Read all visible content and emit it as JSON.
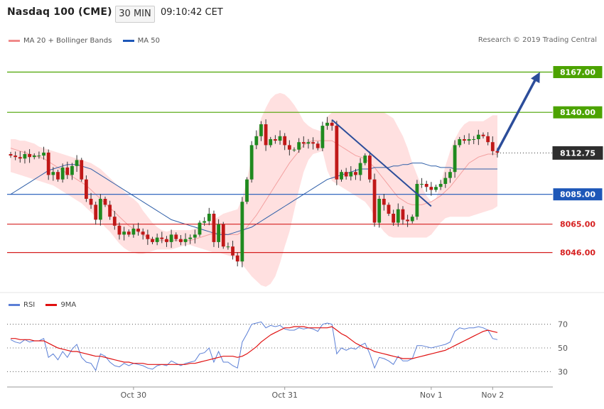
{
  "header": {
    "title": "Nasdaq 100 (CME)",
    "timeframe": "30 MIN",
    "time": "09:10:42 CET"
  },
  "legend": {
    "bb_label": "MA 20 + Bollinger Bands",
    "ma50_label": "MA 50",
    "credit": "Research © 2019 Trading Central"
  },
  "colors": {
    "green": "#4ca300",
    "blue": "#1d57b8",
    "red": "#d62020",
    "band": "#ffd6d6",
    "bull": "#1f8a1f",
    "bear": "#c01818",
    "arrow": "#2c4d9a"
  },
  "chart_data": [
    {
      "type": "candlestick",
      "ylim": [
        8022,
        8182
      ],
      "levels": [
        {
          "value": 8167.0,
          "label": "8167.00",
          "color": "#4ca300"
        },
        {
          "value": 8140.0,
          "label": "8140.00",
          "color": "#4ca300"
        },
        {
          "value": 8112.75,
          "label": "8112.75",
          "color": "#333333",
          "kind": "price"
        },
        {
          "value": 8085.0,
          "label": "8085.00",
          "color": "#1d57b8"
        },
        {
          "value": 8065.0,
          "label": "8065.00",
          "color": "#d62020"
        },
        {
          "value": 8046.0,
          "label": "8046.00",
          "color": "#d62020"
        }
      ],
      "x_tick_labels": [
        {
          "label": "Oct 30",
          "index": 26
        },
        {
          "label": "Oct 31",
          "index": 58
        },
        {
          "label": "Nov 1",
          "index": 89
        },
        {
          "label": "Nov 2",
          "index": 102
        }
      ],
      "series": [
        {
          "name": "MA 20 + Bollinger Bands"
        },
        {
          "name": "MA 50"
        }
      ],
      "closes": [
        8111,
        8110,
        8109,
        8112,
        8110,
        8111,
        8111,
        8113,
        8098,
        8100,
        8095,
        8103,
        8098,
        8104,
        8108,
        8095,
        8082,
        8078,
        8068,
        8082,
        8078,
        8070,
        8064,
        8058,
        8060,
        8058,
        8062,
        8060,
        8058,
        8055,
        8053,
        8056,
        8055,
        8053,
        8058,
        8055,
        8053,
        8055,
        8056,
        8058,
        8066,
        8067,
        8072,
        8053,
        8065,
        8050,
        8050,
        8044,
        8040,
        8080,
        8095,
        8118,
        8124,
        8132,
        8118,
        8122,
        8121,
        8124,
        8118,
        8115,
        8115,
        8120,
        8119,
        8120,
        8119,
        8116,
        8131,
        8133,
        8131,
        8095,
        8100,
        8097,
        8100,
        8098,
        8106,
        8111,
        8095,
        8066,
        8082,
        8078,
        8072,
        8066,
        8075,
        8068,
        8067,
        8070,
        8092,
        8092,
        8090,
        8088,
        8090,
        8092,
        8096,
        8100,
        8118,
        8122,
        8121,
        8122,
        8122,
        8125,
        8124,
        8120,
        8114,
        8113
      ],
      "ma20": [
        8116,
        8115,
        8114,
        8113,
        8112,
        8111,
        8110,
        8109,
        8107,
        8105,
        8103,
        8101,
        8099,
        8097,
        8095,
        8093,
        8091,
        8088,
        8085,
        8082,
        8079,
        8076,
        8073,
        8070,
        8067,
        8064,
        8062,
        8060,
        8058,
        8056,
        8055,
        8054,
        8054,
        8054,
        8054,
        8054,
        8054,
        8054,
        8054,
        8055,
        8056,
        8057,
        8058,
        8059,
        8059,
        8059,
        8058,
        8058,
        8058,
        8060,
        8063,
        8067,
        8071,
        8076,
        8081,
        8086,
        8091,
        8096,
        8101,
        8106,
        8110,
        8114,
        8118,
        8120,
        8121,
        8121,
        8121,
        8121,
        8121,
        8119,
        8117,
        8115,
        8113,
        8111,
        8110,
        8109,
        8106,
        8103,
        8099,
        8095,
        8091,
        8087,
        8083,
        8081,
        8079,
        8078,
        8078,
        8078,
        8079,
        8080,
        8082,
        8084,
        8087,
        8090,
        8094,
        8098,
        8102,
        8106,
        8108,
        8110,
        8111,
        8112,
        8112,
        8112
      ],
      "bb_upper": [
        8122,
        8122,
        8121,
        8121,
        8120,
        8119,
        8117,
        8116,
        8115,
        8114,
        8113,
        8112,
        8111,
        8110,
        8109,
        8108,
        8107,
        8106,
        8104,
        8102,
        8099,
        8096,
        8093,
        8090,
        8087,
        8084,
        8082,
        8079,
        8074,
        8070,
        8066,
        8063,
        8061,
        8060,
        8061,
        8061,
        8061,
        8061,
        8061,
        8062,
        8063,
        8064,
        8066,
        8068,
        8070,
        8072,
        8073,
        8074,
        8075,
        8082,
        8095,
        8110,
        8124,
        8136,
        8143,
        8149,
        8152,
        8153,
        8152,
        8149,
        8145,
        8140,
        8134,
        8131,
        8129,
        8128,
        8127,
        8137,
        8140,
        8140,
        8140,
        8140,
        8140,
        8140,
        8140,
        8140,
        8140,
        8140,
        8140,
        8140,
        8138,
        8136,
        8130,
        8124,
        8116,
        8106,
        8098,
        8090,
        8084,
        8080,
        8082,
        8092,
        8104,
        8114,
        8122,
        8128,
        8132,
        8134,
        8134,
        8134,
        8134,
        8136,
        8138,
        8138
      ],
      "bb_lower": [
        8100,
        8099,
        8098,
        8097,
        8096,
        8095,
        8094,
        8093,
        8092,
        8091,
        8089,
        8087,
        8085,
        8083,
        8081,
        8079,
        8076,
        8073,
        8070,
        8067,
        8063,
        8060,
        8056,
        8052,
        8049,
        8047,
        8046,
        8045,
        8045,
        8046,
        8047,
        8048,
        8048,
        8048,
        8048,
        8049,
        8050,
        8051,
        8051,
        8050,
        8049,
        8048,
        8047,
        8046,
        8046,
        8045,
        8044,
        8043,
        8042,
        8038,
        8034,
        8030,
        8027,
        8024,
        8023,
        8025,
        8030,
        8039,
        8050,
        8060,
        8074,
        8088,
        8100,
        8108,
        8112,
        8113,
        8114,
        8101,
        8094,
        8092,
        8090,
        8088,
        8086,
        8084,
        8082,
        8080,
        8076,
        8070,
        8064,
        8060,
        8057,
        8056,
        8056,
        8056,
        8056,
        8056,
        8056,
        8056,
        8056,
        8058,
        8062,
        8066,
        8069,
        8070,
        8070,
        8070,
        8070,
        8070,
        8071,
        8072,
        8073,
        8074,
        8075,
        8077
      ],
      "ma50": [
        8085,
        8087,
        8089,
        8091,
        8093,
        8095,
        8097,
        8099,
        8101,
        8102,
        8103,
        8104,
        8105,
        8105,
        8105,
        8104,
        8103,
        8102,
        8100,
        8098,
        8096,
        8094,
        8092,
        8090,
        8088,
        8086,
        8084,
        8082,
        8080,
        8078,
        8076,
        8074,
        8072,
        8070,
        8068,
        8067,
        8066,
        8065,
        8064,
        8063,
        8062,
        8061,
        8060,
        8059,
        8058,
        8058,
        8058,
        8059,
        8060,
        8061,
        8062,
        8063,
        8065,
        8067,
        8069,
        8071,
        8073,
        8075,
        8077,
        8079,
        8081,
        8083,
        8085,
        8087,
        8089,
        8091,
        8093,
        8095,
        8096,
        8097,
        8098,
        8099,
        8100,
        8101,
        8102,
        8102,
        8102,
        8103,
        8103,
        8103,
        8103,
        8104,
        8104,
        8105,
        8105,
        8106,
        8106,
        8106,
        8105,
        8104,
        8104,
        8103,
        8103,
        8103,
        8102,
        8102,
        8102,
        8102,
        8102,
        8102,
        8102,
        8102,
        8102,
        8102
      ],
      "trendline": {
        "from": {
          "index": 68,
          "value": 8135
        },
        "to": {
          "index": 89,
          "value": 8077
        }
      },
      "arrow": {
        "from": {
          "index": 103,
          "value": 8114
        },
        "to": {
          "index": 112,
          "value": 8167
        }
      }
    },
    {
      "type": "line",
      "ylim": [
        20,
        80
      ],
      "y_ticks": [
        70,
        50,
        30
      ],
      "series": [
        {
          "name": "RSI",
          "color": "#5b7fd6",
          "values": [
            57,
            55,
            54,
            57,
            55,
            56,
            56,
            58,
            42,
            45,
            40,
            47,
            42,
            49,
            53,
            42,
            38,
            37,
            31,
            45,
            43,
            38,
            35,
            34,
            37,
            35,
            37,
            36,
            35,
            33,
            32,
            35,
            36,
            35,
            39,
            37,
            35,
            37,
            38,
            39,
            45,
            46,
            50,
            38,
            47,
            38,
            38,
            35,
            33,
            55,
            62,
            70,
            71,
            72,
            67,
            69,
            68,
            69,
            66,
            65,
            65,
            67,
            66,
            67,
            66,
            64,
            70,
            71,
            70,
            45,
            50,
            48,
            50,
            49,
            52,
            54,
            45,
            33,
            42,
            41,
            39,
            36,
            43,
            39,
            39,
            41,
            52,
            52,
            51,
            50,
            51,
            52,
            53,
            55,
            64,
            67,
            66,
            67,
            67,
            68,
            67,
            65,
            58,
            57
          ]
        },
        {
          "name": "9MA",
          "color": "#e01010",
          "values": [
            58,
            58,
            57,
            57,
            57,
            56,
            56,
            56,
            54,
            52,
            50,
            49,
            48,
            47,
            47,
            46,
            45,
            44,
            43,
            43,
            42,
            41,
            40,
            39,
            38,
            38,
            37,
            37,
            37,
            36,
            36,
            36,
            36,
            36,
            36,
            36,
            36,
            36,
            37,
            37,
            38,
            39,
            40,
            41,
            42,
            43,
            43,
            43,
            42,
            43,
            45,
            48,
            51,
            55,
            58,
            61,
            63,
            65,
            67,
            67,
            68,
            68,
            68,
            67,
            67,
            67,
            67,
            67,
            68,
            65,
            62,
            60,
            57,
            54,
            52,
            50,
            49,
            47,
            46,
            45,
            44,
            43,
            42,
            41,
            41,
            41,
            42,
            43,
            44,
            45,
            46,
            47,
            48,
            50,
            52,
            54,
            56,
            58,
            60,
            62,
            64,
            65,
            64,
            63
          ]
        }
      ]
    }
  ]
}
